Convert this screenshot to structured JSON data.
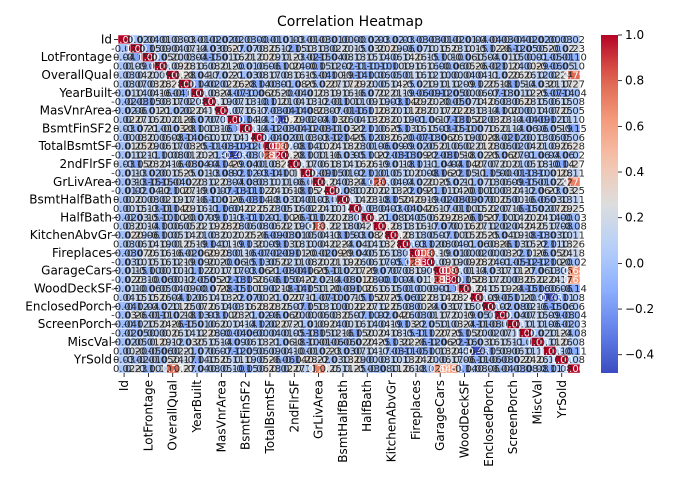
{
  "chart_data": {
    "type": "heatmap",
    "title": "Correlation Heatmap",
    "xlabel": "",
    "ylabel": "",
    "colormap": "coolwarm",
    "annotated": true,
    "value_range": [
      -0.48,
      1.0
    ],
    "colorbar": {
      "ticks": [
        1.0,
        0.8,
        0.6,
        0.4,
        0.2,
        0.0,
        -0.2,
        -0.4
      ],
      "tick_labels": [
        "1.0",
        "0.8",
        "0.6",
        "0.4",
        "0.2",
        "0.0",
        "−0.2",
        "−0.4"
      ]
    },
    "x_tick_labels": [
      "Id",
      "LotFrontage",
      "OverallQual",
      "YearBuilt",
      "MasVnrArea",
      "BsmtFinSF2",
      "TotalBsmtSF",
      "2ndFlrSF",
      "GrLivArea",
      "BsmtHalfBath",
      "HalfBath",
      "KitchenAbvGr",
      "Fireplaces",
      "GarageCars",
      "WoodDeckSF",
      "EnclosedPorch",
      "ScreenPorch",
      "MiscVal",
      "YrSold"
    ],
    "y_tick_labels": [
      "Id",
      "LotFrontage",
      "OverallQual",
      "YearBuilt",
      "MasVnrArea",
      "BsmtFinSF2",
      "TotalBsmtSF",
      "2ndFlrSF",
      "GrLivArea",
      "BsmtHalfBath",
      "HalfBath",
      "KitchenAbvGr",
      "Fireplaces",
      "GarageCars",
      "WoodDeckSF",
      "EnclosedPorch",
      "ScreenPorch",
      "MiscVal",
      "YrSold"
    ],
    "matrix_size": 38,
    "notable_cells": [
      {
        "row": 29,
        "col": 35,
        "value": -0.48
      },
      {
        "row": 9,
        "col": 13,
        "value": -0.48
      },
      {
        "row": 37,
        "col": 4,
        "value": 0.79
      },
      {
        "row": 37,
        "col": 16,
        "value": 0.71
      },
      {
        "row": 37,
        "col": 26,
        "value": 0.64
      },
      {
        "row": 37,
        "col": 27,
        "value": 0.62
      },
      {
        "row": 12,
        "col": 13,
        "value": 0.82
      },
      {
        "row": 16,
        "col": 21,
        "value": 0.83
      },
      {
        "row": 26,
        "col": 27,
        "value": 0.88
      },
      {
        "row": 25,
        "col": 24,
        "value": 0.83
      }
    ]
  }
}
